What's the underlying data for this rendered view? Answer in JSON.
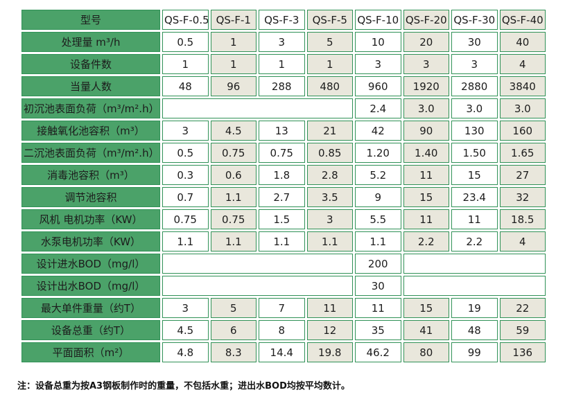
{
  "colors": {
    "green": "#4ba269",
    "border_green": "#2f9156",
    "beige": "#e9e7dc",
    "text_dark": "#1c1c1c"
  },
  "table": {
    "header": {
      "label": "型号",
      "models": [
        "QS-F-0.5",
        "QS-F-1",
        "QS-F-3",
        "QS-F-5",
        "QS-F-10",
        "QS-F-20",
        "QS-F-30",
        "QS-F-40"
      ]
    },
    "rows": [
      {
        "label": "处理量 m³/h",
        "layout": "full",
        "values": [
          "0.5",
          "1",
          "3",
          "5",
          "10",
          "20",
          "30",
          "40"
        ]
      },
      {
        "label": "设备件数",
        "layout": "full",
        "values": [
          "1",
          "1",
          "1",
          "1",
          "3",
          "3",
          "3",
          "4"
        ]
      },
      {
        "label": "当量人数",
        "layout": "full",
        "values": [
          "48",
          "96",
          "288",
          "480",
          "960",
          "1920",
          "2880",
          "3840"
        ]
      },
      {
        "label": "初沉池表面负荷（m³/m².h）",
        "layout": "right4",
        "values": [
          "2.4",
          "3.0",
          "3.0",
          "3.0"
        ]
      },
      {
        "label": "接触氧化池容积（m³）",
        "layout": "full",
        "values": [
          "3",
          "4.5",
          "13",
          "21",
          "42",
          "90",
          "130",
          "160"
        ]
      },
      {
        "label": "二沉池表面负荷（m³/m².h）",
        "layout": "full",
        "values": [
          "0.5",
          "0.75",
          "0.75",
          "0.85",
          "1.20",
          "1.40",
          "1.50",
          "1.65"
        ]
      },
      {
        "label": "消毒池容积（m³）",
        "layout": "full",
        "values": [
          "0.3",
          "0.6",
          "1.8",
          "2.8",
          "5.2",
          "11",
          "15",
          "27"
        ]
      },
      {
        "label": "调节池容积",
        "layout": "full",
        "values": [
          "0.7",
          "1.1",
          "2.7",
          "3.5",
          "9",
          "15",
          "23.4",
          "32"
        ]
      },
      {
        "label": "风机 电机功率（KW）",
        "layout": "full",
        "values": [
          "0.75",
          "0.75",
          "1.5",
          "3",
          "5.5",
          "11",
          "11",
          "18.5"
        ]
      },
      {
        "label": "水泵电机功率（KW）",
        "layout": "full",
        "values": [
          "1.1",
          "1.1",
          "1.1",
          "1.1",
          "1.1",
          "2.2",
          "2.2",
          "4"
        ]
      },
      {
        "label": "设计进水BOD（mg/l）",
        "layout": "mid5",
        "values": [
          "200"
        ]
      },
      {
        "label": "设计出水BOD（mg/l）",
        "layout": "mid5",
        "values": [
          "30"
        ]
      },
      {
        "label": "最大单件重量（约T）",
        "layout": "full",
        "values": [
          "3",
          "5",
          "7",
          "11",
          "11",
          "15",
          "19",
          "22"
        ]
      },
      {
        "label": "设备总重（约T）",
        "layout": "full",
        "values": [
          "4.5",
          "6",
          "8",
          "12",
          "35",
          "41",
          "48",
          "59"
        ]
      },
      {
        "label": "平面面积（m²）",
        "layout": "full",
        "values": [
          "4.8",
          "8.3",
          "14.4",
          "19.8",
          "46.2",
          "80",
          "99",
          "136"
        ]
      }
    ],
    "note": "注：设备总重为按A3钢板制作时的重量，不包括水重；进出水BOD均按平均数计。"
  }
}
